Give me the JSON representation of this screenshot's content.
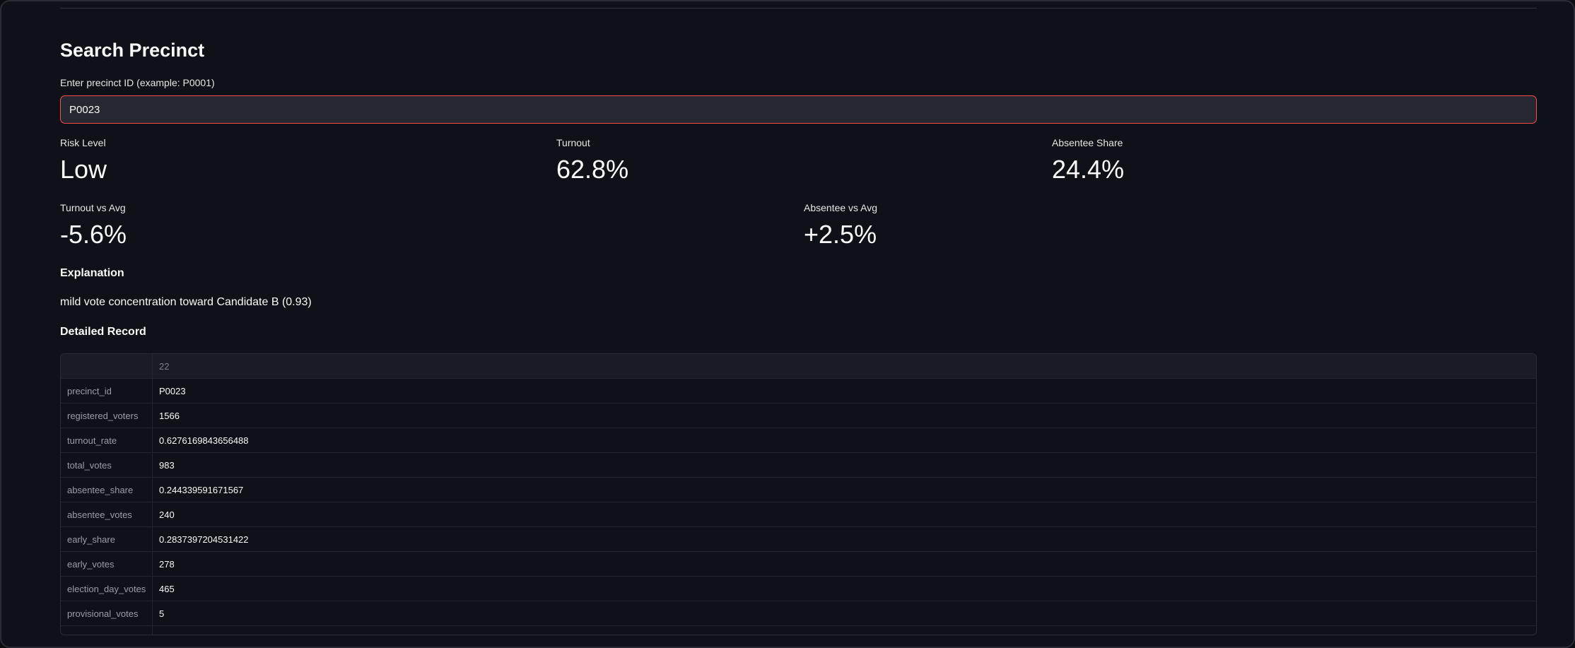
{
  "search": {
    "title": "Search Precinct",
    "input_label": "Enter precinct ID (example: P0001)",
    "input_value": "P0023"
  },
  "metrics_row1": [
    {
      "label": "Risk Level",
      "value": "Low"
    },
    {
      "label": "Turnout",
      "value": "62.8%"
    },
    {
      "label": "Absentee Share",
      "value": "24.4%"
    }
  ],
  "metrics_row2": [
    {
      "label": "Turnout vs Avg",
      "value": "-5.6%"
    },
    {
      "label": "Absentee vs Avg",
      "value": "+2.5%"
    }
  ],
  "explanation": {
    "heading": "Explanation",
    "text": "mild vote concentration toward Candidate B (0.93)"
  },
  "detail": {
    "heading": "Detailed Record",
    "column_header": "22",
    "rows": [
      {
        "key": "precinct_id",
        "value": "P0023"
      },
      {
        "key": "registered_voters",
        "value": "1566"
      },
      {
        "key": "turnout_rate",
        "value": "0.6276169843656488"
      },
      {
        "key": "total_votes",
        "value": "983"
      },
      {
        "key": "absentee_share",
        "value": "0.244339591671567"
      },
      {
        "key": "absentee_votes",
        "value": "240"
      },
      {
        "key": "early_share",
        "value": "0.2837397204531422"
      },
      {
        "key": "early_votes",
        "value": "278"
      },
      {
        "key": "election_day_votes",
        "value": "465"
      },
      {
        "key": "provisional_votes",
        "value": "5"
      },
      {
        "key": "",
        "value": ""
      }
    ]
  },
  "colors": {
    "background": "#0e1117",
    "input_border_focus": "#ff4b4b",
    "input_bg": "#262730"
  }
}
